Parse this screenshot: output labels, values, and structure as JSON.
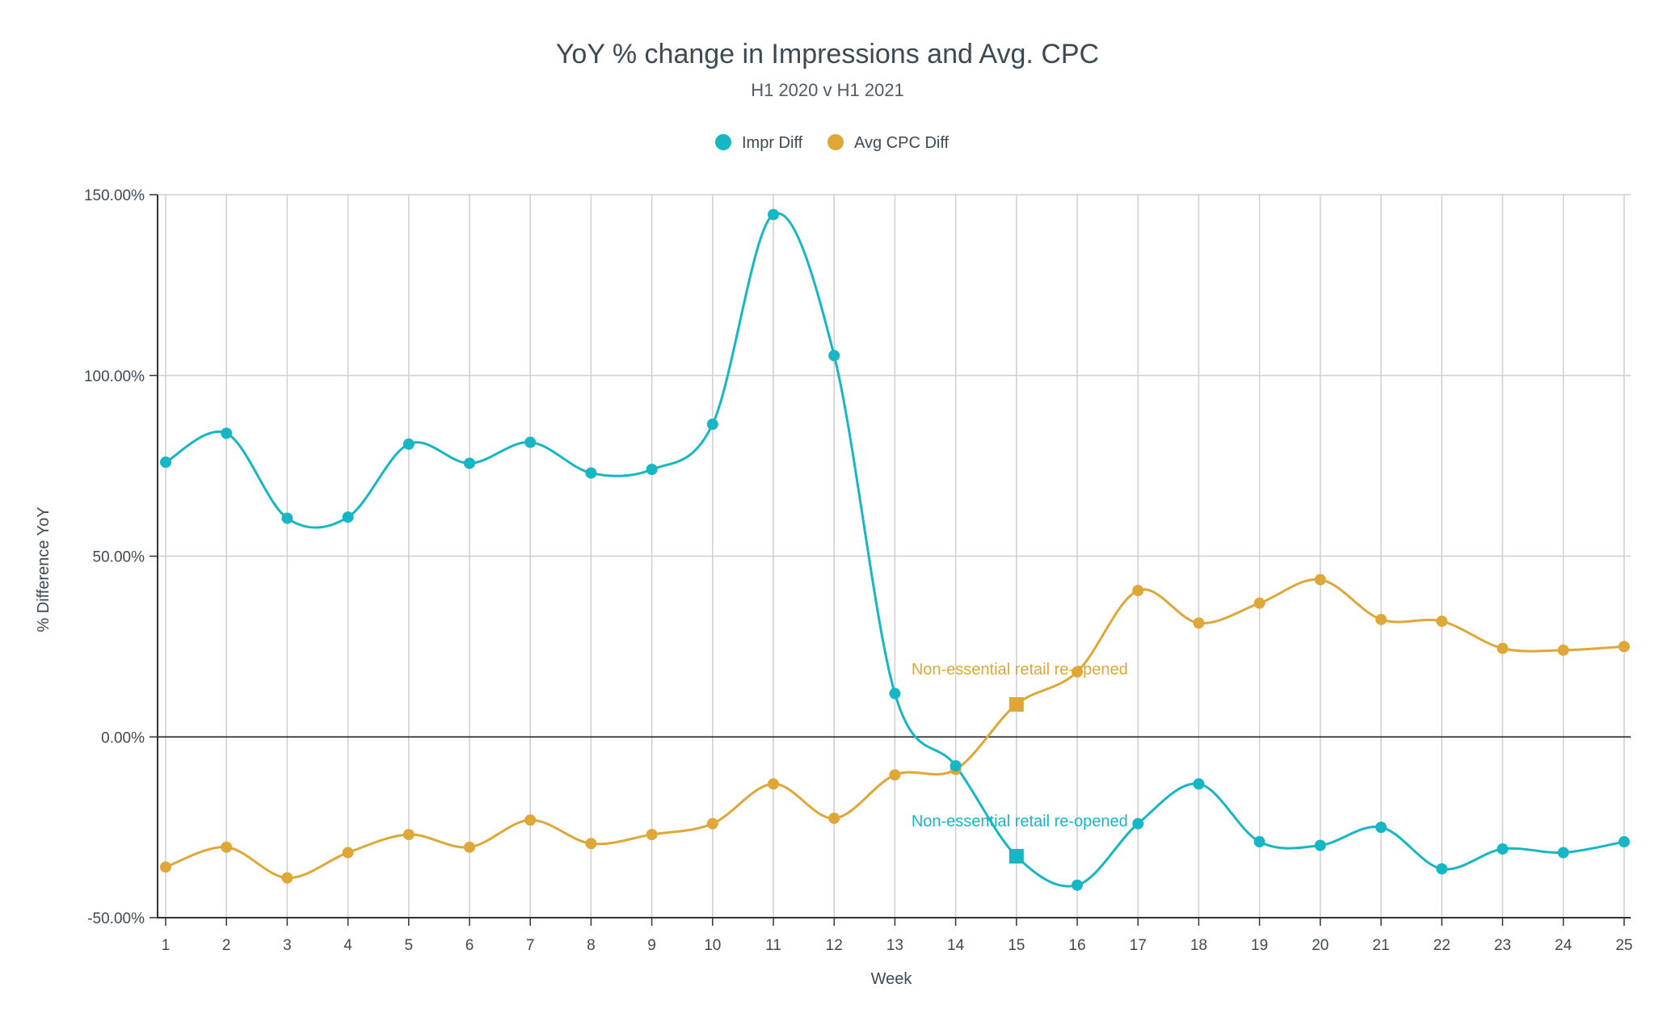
{
  "chart_data": {
    "type": "line",
    "title": "YoY % change in Impressions and Avg. CPC",
    "subtitle": "H1 2020 v H1 2021",
    "xlabel": "Week",
    "ylabel": "% Difference YoY",
    "ylim": [
      -50,
      150
    ],
    "y_ticks": [
      "150.00%",
      "100.00%",
      "50.00%",
      "0.00%",
      "-50.00%"
    ],
    "y_tick_values": [
      150,
      100,
      50,
      0,
      -50
    ],
    "categories": [
      "1",
      "2",
      "3",
      "4",
      "5",
      "6",
      "7",
      "8",
      "9",
      "10",
      "11",
      "12",
      "13",
      "14",
      "15",
      "16",
      "17",
      "18",
      "19",
      "20",
      "21",
      "22",
      "23",
      "24",
      "25"
    ],
    "grid": true,
    "legend_position": "top-center",
    "series": [
      {
        "name": "Impr Diff",
        "color": "#17b6c4",
        "values": [
          76,
          84,
          60.5,
          60.8,
          81,
          75.7,
          81.5,
          73,
          74,
          86.5,
          144.5,
          105.5,
          12,
          -8,
          -33,
          -41,
          -24,
          -13,
          -29,
          -30,
          -25,
          -36.5,
          -31,
          -32,
          -29
        ]
      },
      {
        "name": "Avg CPC Diff",
        "color": "#dea738",
        "values": [
          -36,
          -30.5,
          -39,
          -32,
          -27,
          -30.5,
          -23,
          -29.5,
          -27,
          -24,
          -13,
          -22.5,
          -10.5,
          -9,
          9,
          18,
          40.5,
          31.5,
          37,
          43.5,
          32.5,
          32,
          24.5,
          24,
          25
        ]
      }
    ],
    "annotations": [
      {
        "text": "Non-essential retail re-opened",
        "series": 1,
        "week": 15,
        "color": "#dea738"
      },
      {
        "text": "Non-essential retail re-opened",
        "series": 0,
        "week": 15,
        "color": "#17b6c4"
      }
    ],
    "colors": {
      "text": "#3d4a54",
      "grid": "#cfcfcf",
      "axis": "#333333"
    }
  }
}
